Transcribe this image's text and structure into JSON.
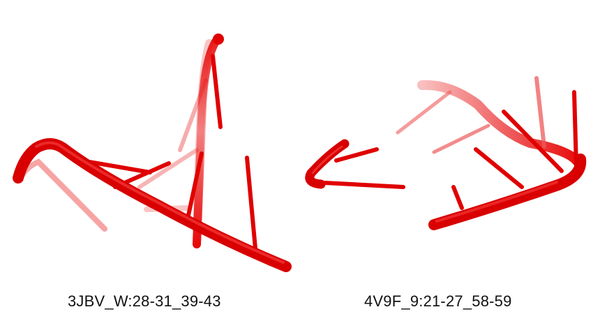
{
  "colors": {
    "backbone": "#e00000",
    "backbone_highlight": "#ff5a5a",
    "faded": "#ef6b6b",
    "background": "#ffffff"
  },
  "panels": [
    {
      "caption": "3JBV_W:28-31_39-43"
    },
    {
      "caption": "4V9F_9:21-27_58-59"
    }
  ]
}
